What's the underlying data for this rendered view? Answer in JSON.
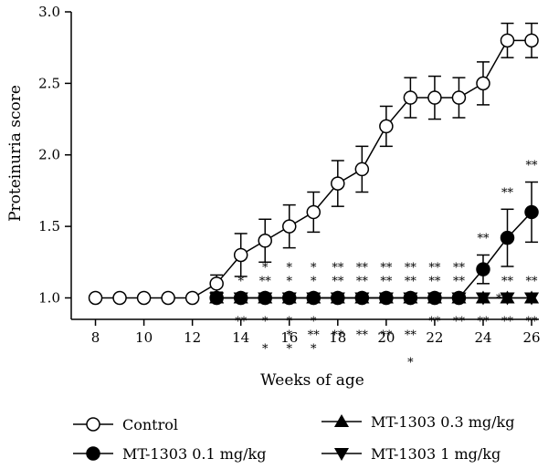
{
  "chart_data": {
    "type": "line",
    "xlabel": "Weeks of age",
    "ylabel": "Proteinuria score",
    "xlim": [
      7,
      26.3
    ],
    "ylim": [
      0.85,
      3.0
    ],
    "xticks": [
      8,
      10,
      12,
      14,
      16,
      18,
      20,
      22,
      24,
      26
    ],
    "yticks": [
      1.0,
      1.5,
      2.0,
      2.5,
      3.0
    ],
    "ytick_labels": [
      "1.0",
      "1.5",
      "2.0",
      "2.5",
      "3.0"
    ],
    "series": [
      {
        "name": "Control",
        "marker": "circle-open",
        "x": [
          8,
          9,
          10,
          11,
          12,
          13,
          14,
          15,
          16,
          17,
          18,
          19,
          20,
          21,
          22,
          23,
          24,
          25,
          26
        ],
        "y": [
          1.0,
          1.0,
          1.0,
          1.0,
          1.0,
          1.1,
          1.3,
          1.4,
          1.5,
          1.6,
          1.8,
          1.9,
          2.2,
          2.4,
          2.4,
          2.4,
          2.5,
          2.8,
          2.8
        ],
        "err": [
          0,
          0,
          0,
          0,
          0,
          0.06,
          0.15,
          0.15,
          0.15,
          0.14,
          0.16,
          0.16,
          0.14,
          0.14,
          0.15,
          0.14,
          0.15,
          0.12,
          0.12
        ]
      },
      {
        "name": "MT-1303 0.1 mg/kg",
        "marker": "circle-filled",
        "x": [
          13,
          14,
          15,
          16,
          17,
          18,
          19,
          20,
          21,
          22,
          23,
          24,
          25,
          26
        ],
        "y": [
          1.0,
          1.0,
          1.0,
          1.0,
          1.0,
          1.0,
          1.0,
          1.0,
          1.0,
          1.0,
          1.0,
          1.2,
          1.42,
          1.6
        ],
        "err": [
          0,
          0,
          0,
          0,
          0,
          0,
          0,
          0,
          0,
          0,
          0,
          0.1,
          0.2,
          0.21
        ]
      },
      {
        "name": "MT-1303 0.3 mg/kg",
        "marker": "triangle-up",
        "x": [
          13,
          14,
          15,
          16,
          17,
          18,
          19,
          20,
          21,
          22,
          23,
          24,
          25,
          26
        ],
        "y": [
          1.0,
          1.0,
          1.0,
          1.0,
          1.0,
          1.0,
          1.0,
          1.0,
          1.0,
          1.0,
          1.0,
          1.0,
          1.0,
          1.0
        ],
        "err": [
          0,
          0,
          0,
          0,
          0,
          0,
          0,
          0,
          0,
          0,
          0,
          0,
          0,
          0
        ]
      },
      {
        "name": "MT-1303 1 mg/kg",
        "marker": "triangle-down",
        "x": [
          13,
          14,
          15,
          16,
          17,
          18,
          19,
          20,
          21,
          22,
          23,
          24,
          25,
          26
        ],
        "y": [
          1.0,
          1.0,
          1.0,
          1.0,
          1.0,
          1.0,
          1.0,
          1.0,
          1.0,
          1.0,
          1.0,
          1.0,
          1.0,
          1.0
        ],
        "err": [
          0,
          0,
          0,
          0,
          0,
          0,
          0,
          0,
          0,
          0,
          0,
          0,
          0,
          0
        ]
      }
    ],
    "annotations": [
      {
        "x": 14,
        "y": 1.0,
        "pos": "above",
        "rows": [
          "*"
        ]
      },
      {
        "x": 15,
        "y": 1.0,
        "pos": "above",
        "rows": [
          "*",
          "**"
        ]
      },
      {
        "x": 16,
        "y": 1.0,
        "pos": "above",
        "rows": [
          "*",
          "*"
        ]
      },
      {
        "x": 17,
        "y": 1.0,
        "pos": "above",
        "rows": [
          "*",
          "*"
        ]
      },
      {
        "x": 18,
        "y": 1.0,
        "pos": "above",
        "rows": [
          "**",
          "**"
        ]
      },
      {
        "x": 19,
        "y": 1.0,
        "pos": "above",
        "rows": [
          "**",
          "**"
        ]
      },
      {
        "x": 20,
        "y": 1.0,
        "pos": "above",
        "rows": [
          "**",
          "**"
        ]
      },
      {
        "x": 21,
        "y": 1.0,
        "pos": "above",
        "rows": [
          "**",
          "**"
        ]
      },
      {
        "x": 22,
        "y": 1.0,
        "pos": "above",
        "rows": [
          "**",
          "**"
        ]
      },
      {
        "x": 23,
        "y": 1.0,
        "pos": "above",
        "rows": [
          "**",
          "**"
        ]
      },
      {
        "x": 25,
        "y": 1.0,
        "pos": "above",
        "rows": [
          "**"
        ]
      },
      {
        "x": 26,
        "y": 1.0,
        "pos": "above",
        "rows": [
          "**"
        ]
      },
      {
        "x": 24,
        "y": 1.3,
        "pos": "above",
        "rows": [
          "**"
        ]
      },
      {
        "x": 25,
        "y": 1.62,
        "pos": "above",
        "rows": [
          "**"
        ]
      },
      {
        "x": 26,
        "y": 1.81,
        "pos": "above",
        "rows": [
          "**"
        ]
      },
      {
        "x": 24,
        "y": 1.0,
        "pos": "right",
        "rows": [
          "**"
        ]
      },
      {
        "x": 14,
        "y": 1.0,
        "pos": "below",
        "rows": [
          "**"
        ]
      },
      {
        "x": 15,
        "y": 1.0,
        "pos": "below",
        "rows": [
          "*",
          "",
          "*"
        ]
      },
      {
        "x": 16,
        "y": 1.0,
        "pos": "below",
        "rows": [
          "*",
          "*",
          "*"
        ]
      },
      {
        "x": 17,
        "y": 1.0,
        "pos": "below",
        "rows": [
          "*",
          "**",
          "*"
        ]
      },
      {
        "x": 18,
        "y": 1.0,
        "pos": "below",
        "rows": [
          "",
          "**"
        ]
      },
      {
        "x": 19,
        "y": 1.0,
        "pos": "below",
        "rows": [
          "",
          "**"
        ]
      },
      {
        "x": 20,
        "y": 1.0,
        "pos": "below",
        "rows": [
          "",
          "**"
        ]
      },
      {
        "x": 21,
        "y": 1.0,
        "pos": "below",
        "rows": [
          "",
          "**",
          "",
          "*"
        ]
      },
      {
        "x": 22,
        "y": 1.0,
        "pos": "below",
        "rows": [
          "**"
        ]
      },
      {
        "x": 23,
        "y": 1.0,
        "pos": "below",
        "rows": [
          "**"
        ]
      },
      {
        "x": 24,
        "y": 1.0,
        "pos": "below",
        "rows": [
          "**"
        ]
      },
      {
        "x": 25,
        "y": 1.0,
        "pos": "below",
        "rows": [
          "**"
        ]
      },
      {
        "x": 26,
        "y": 1.0,
        "pos": "below",
        "rows": [
          "**"
        ]
      }
    ],
    "legend_placement": "bottom"
  }
}
